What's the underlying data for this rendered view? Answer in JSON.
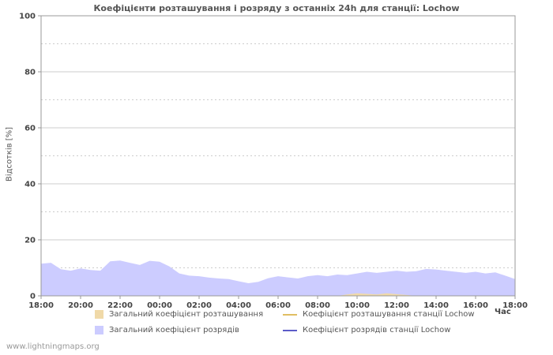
{
  "chart_data": {
    "type": "area",
    "title": "Коефіцієнти розташування і розряду з останніх 24h для станції: Lochow",
    "xlabel": "Час",
    "ylabel": "Відсотків  [%]",
    "ylim": [
      0,
      100
    ],
    "y_ticks": [
      0,
      20,
      40,
      60,
      80,
      100
    ],
    "x_ticks": [
      "18:00",
      "20:00",
      "22:00",
      "00:00",
      "02:00",
      "04:00",
      "06:00",
      "08:00",
      "10:00",
      "12:00",
      "14:00",
      "16:00",
      "18:00"
    ],
    "x_unit": "time of day, 24h span, 30-minute sample steps",
    "grid": "horizontal only: solid lines each 20%, dashed lines each intermediate 10%",
    "legend_position": "bottom",
    "colors": {
      "grid": "#cccccc",
      "axis": "#999999",
      "text": "#444444",
      "title": "#555555",
      "background": "#ffffff"
    },
    "series": [
      {
        "name": "Загальний коефіцієнт розрядів",
        "type": "area",
        "color": "#ccccff",
        "values": [
          11.5,
          11.8,
          9.5,
          9.0,
          9.8,
          9.2,
          9.0,
          12.3,
          12.6,
          11.8,
          11.0,
          12.5,
          12.2,
          10.5,
          8.0,
          7.2,
          7.0,
          6.5,
          6.2,
          6.0,
          5.2,
          4.5,
          5.0,
          6.3,
          7.0,
          6.6,
          6.2,
          7.0,
          7.4,
          7.0,
          7.6,
          7.4,
          8.0,
          8.6,
          8.2,
          8.6,
          9.0,
          8.6,
          8.8,
          9.6,
          9.4,
          9.0,
          8.6,
          8.2,
          8.6,
          8.0,
          8.4,
          7.2,
          6.0
        ]
      },
      {
        "name": "Загальний коефіцієнт розташування",
        "type": "area",
        "color": "#f0d9a8",
        "values": [
          0,
          0,
          0,
          0,
          0,
          0,
          0,
          0,
          0,
          0,
          0,
          0,
          0,
          0,
          0,
          0,
          0,
          0,
          0,
          0,
          0,
          0,
          0,
          0,
          0,
          0,
          0,
          0,
          0,
          0,
          0,
          0.5,
          0.9,
          0.7,
          0.5,
          0.9,
          0.6,
          0.3,
          0,
          0,
          0,
          0,
          0,
          0,
          0,
          0,
          0,
          0,
          0
        ]
      },
      {
        "name": "Коефіцієнт розташування станції Lochow",
        "type": "line",
        "color": "#e0be62",
        "values": [
          0,
          0,
          0,
          0,
          0,
          0,
          0,
          0,
          0,
          0,
          0,
          0,
          0,
          0,
          0,
          0,
          0,
          0,
          0,
          0,
          0,
          0,
          0,
          0,
          0,
          0,
          0,
          0,
          0,
          0,
          0,
          0,
          0,
          0,
          0,
          0,
          0,
          0,
          0,
          0,
          0,
          0,
          0,
          0,
          0,
          0,
          0,
          0,
          0
        ]
      },
      {
        "name": "Коефіцієнт розрядів станції Lochow",
        "type": "line",
        "color": "#5c5cc8",
        "values": [
          0,
          0,
          0,
          0,
          0,
          0,
          0,
          0,
          0,
          0,
          0,
          0,
          0,
          0,
          0,
          0,
          0,
          0,
          0,
          0,
          0,
          0,
          0,
          0,
          0,
          0,
          0,
          0,
          0,
          0,
          0,
          0,
          0,
          0,
          0,
          0,
          0,
          0,
          0,
          0,
          0,
          0,
          0,
          0,
          0,
          0,
          0,
          0,
          0
        ]
      }
    ]
  },
  "footer": {
    "watermark": "www.lightningmaps.org"
  }
}
